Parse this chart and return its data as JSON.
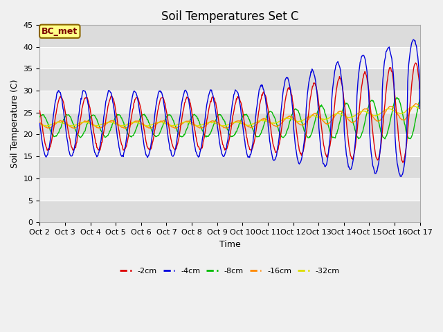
{
  "title": "Soil Temperatures Set C",
  "xlabel": "Time",
  "ylabel": "Soil Temperature (C)",
  "ylim": [
    0,
    45
  ],
  "annotation": "BC_met",
  "colors": {
    "-2cm": "#dd0000",
    "-4cm": "#0000dd",
    "-8cm": "#00bb00",
    "-16cm": "#ff8800",
    "-32cm": "#dddd00"
  },
  "legend_labels": [
    "-2cm",
    "-4cm",
    "-8cm",
    "-16cm",
    "-32cm"
  ],
  "xtick_labels": [
    "Oct 2",
    "Oct 3",
    "Oct 4",
    "Oct 5",
    "Oct 6",
    "Oct 7",
    "Oct 8",
    "Oct 9",
    "Oct 10",
    "Oct 11",
    "Oct 12",
    "Oct 13",
    "Oct 14",
    "Oct 15",
    "Oct 16",
    "Oct 17"
  ],
  "yticks": [
    0,
    5,
    10,
    15,
    20,
    25,
    30,
    35,
    40,
    45
  ],
  "band_colors": [
    "#dcdcdc",
    "#f0f0f0"
  ],
  "title_fontsize": 12,
  "axis_label_fontsize": 9,
  "tick_fontsize": 8
}
